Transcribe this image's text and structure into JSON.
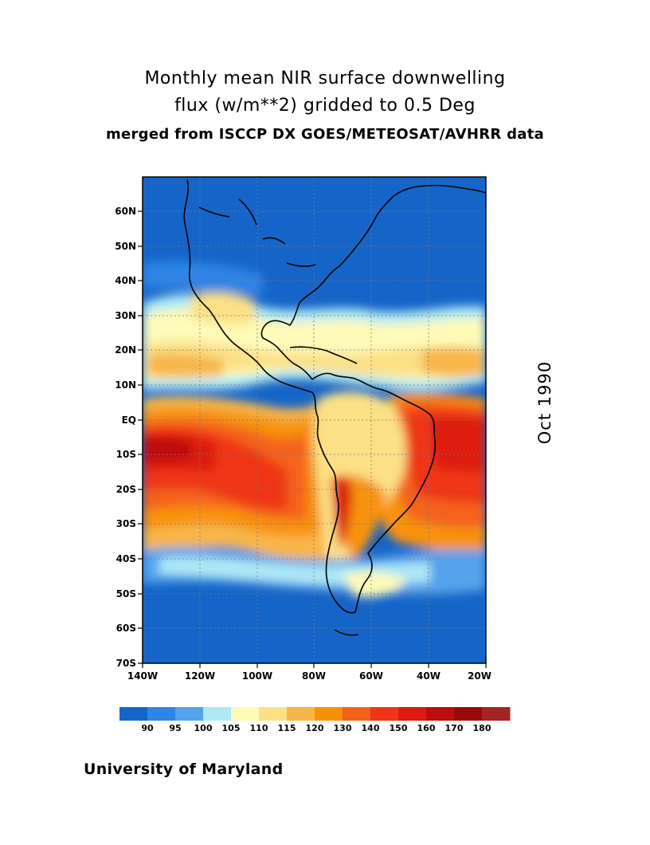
{
  "title": {
    "line1": "Monthly mean NIR surface downwelling",
    "line2": "flux (w/m**2) gridded to 0.5 Deg",
    "line3": "merged from ISCCP DX GOES/METEOSAT/AVHRR data"
  },
  "date_label": "Oct 1990",
  "credit": "University of Maryland",
  "map": {
    "lat_ticks": [
      "60N",
      "50N",
      "40N",
      "30N",
      "20N",
      "10N",
      "EQ",
      "10S",
      "20S",
      "30S",
      "40S",
      "50S",
      "60S",
      "70S"
    ],
    "lon_ticks": [
      "140W",
      "120W",
      "100W",
      "80W",
      "60W",
      "40W",
      "20W"
    ],
    "lat_range": [
      -70,
      70
    ],
    "lon_range": [
      -140,
      -20
    ],
    "grid": true
  },
  "colorbar": {
    "labels": [
      "90",
      "95",
      "100",
      "105",
      "110",
      "115",
      "120",
      "130",
      "140",
      "150",
      "160",
      "170",
      "180"
    ],
    "colors": [
      "#1565c8",
      "#2f85e6",
      "#55a3ec",
      "#aee8f4",
      "#fefab8",
      "#fbe085",
      "#f8b649",
      "#f79208",
      "#f4621a",
      "#ef3516",
      "#dc1c10",
      "#bd0c0c",
      "#9a0808",
      "#a32422"
    ]
  }
}
